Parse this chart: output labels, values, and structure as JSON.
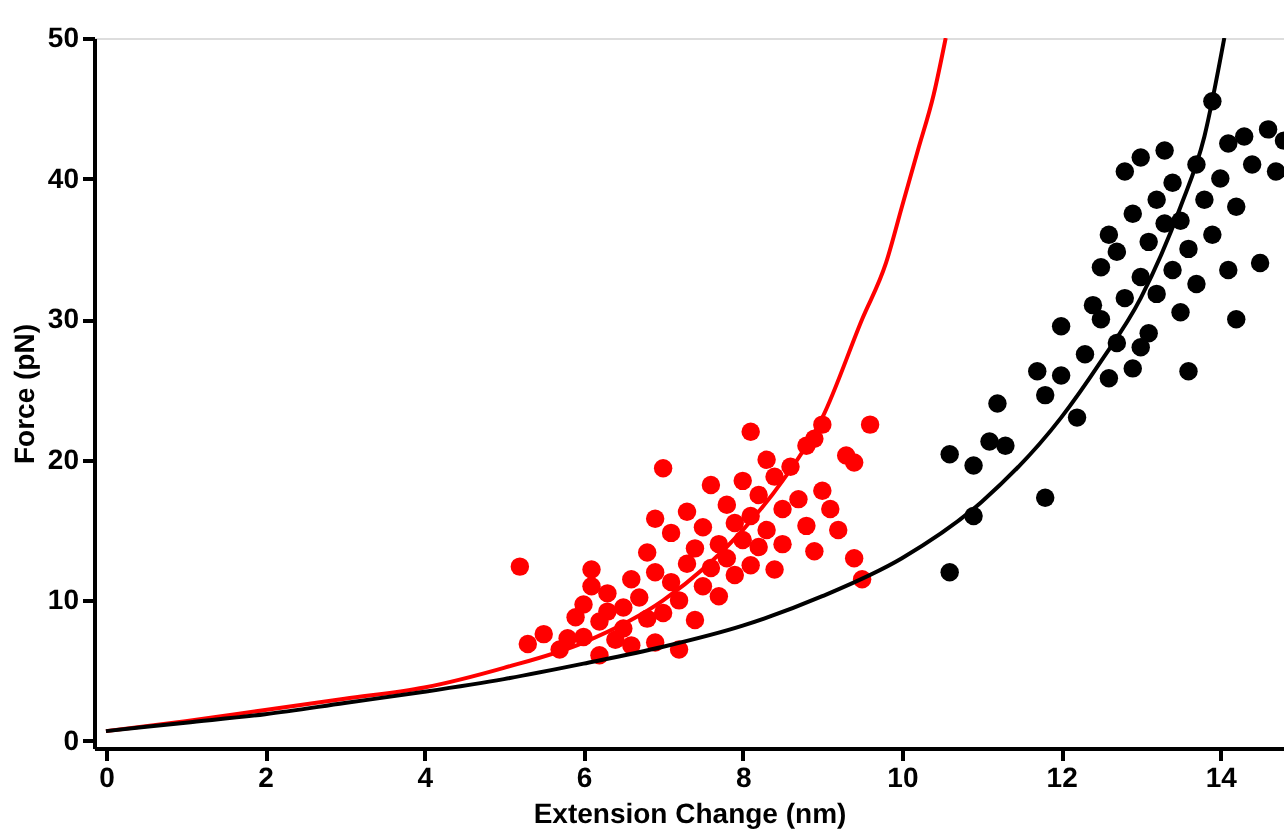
{
  "chart_data": {
    "type": "scatter",
    "xlabel": "Extension Change (nm)",
    "ylabel": "Force (pN)",
    "xlim": [
      -0.15,
      14.8
    ],
    "ylim": [
      -0.5,
      50
    ],
    "xticks": [
      0,
      2,
      4,
      6,
      8,
      10,
      12,
      14
    ],
    "yticks": [
      0,
      10,
      20,
      30,
      40,
      50
    ],
    "marker": "circle",
    "series": [
      {
        "color": "#ff0000",
        "x": [
          5.2,
          5.3,
          5.5,
          5.7,
          5.8,
          5.9,
          6.0,
          6.0,
          6.1,
          6.1,
          6.2,
          6.2,
          6.3,
          6.3,
          6.4,
          6.5,
          6.5,
          6.6,
          6.6,
          6.7,
          6.8,
          6.8,
          6.9,
          6.9,
          7.0,
          7.0,
          7.1,
          7.1,
          7.2,
          7.3,
          7.3,
          7.4,
          7.4,
          7.5,
          7.5,
          7.6,
          7.6,
          7.7,
          7.7,
          7.8,
          7.8,
          7.9,
          7.9,
          8.0,
          8.0,
          8.1,
          8.1,
          8.1,
          8.2,
          8.2,
          8.3,
          8.3,
          8.4,
          8.4,
          8.5,
          8.5,
          8.6,
          8.7,
          8.8,
          8.8,
          8.9,
          9.0,
          9.1,
          9.2,
          9.3,
          9.4,
          9.4,
          9.5,
          9.6,
          9.0,
          8.9,
          7.2,
          6.9
        ],
        "values": [
          12.4,
          6.9,
          7.6,
          6.5,
          7.3,
          8.8,
          9.7,
          7.4,
          11,
          12.2,
          6.1,
          8.5,
          9.2,
          10.5,
          7.2,
          8,
          9.5,
          6.8,
          11.5,
          10.2,
          8.7,
          13.4,
          12,
          15.8,
          9.1,
          19.4,
          11.3,
          14.8,
          10,
          12.6,
          16.3,
          8.6,
          13.7,
          11,
          15.2,
          12.3,
          18.2,
          14,
          10.3,
          13,
          16.8,
          11.8,
          15.5,
          14.3,
          18.5,
          12.5,
          16,
          22,
          13.8,
          17.5,
          15,
          20,
          12.2,
          18.8,
          16.5,
          14,
          19.5,
          17.2,
          15.3,
          21,
          13.5,
          17.8,
          16.5,
          15,
          20.3,
          19.8,
          13,
          11.5,
          22.5,
          22.5,
          21.5,
          6.5,
          7
        ]
      },
      {
        "type": "line",
        "color": "#ff0000",
        "marker": "none",
        "x": [
          0,
          1,
          2,
          3,
          4,
          5,
          6,
          7,
          8,
          8.5,
          9,
          9.5,
          9.8,
          10,
          10.2,
          10.4,
          10.55
        ],
        "values": [
          0.7,
          1.4,
          2.2,
          3,
          3.8,
          5.2,
          7,
          10,
          15,
          18.5,
          23,
          30,
          34,
          38,
          42,
          46,
          50
        ]
      },
      {
        "color": "#000000",
        "x": [
          10.6,
          10.6,
          10.9,
          10.9,
          11.2,
          11.1,
          11.3,
          11.8,
          11.7,
          11.8,
          12.0,
          12.2,
          12.0,
          12.3,
          12.4,
          12.5,
          12.6,
          12.5,
          12.6,
          12.7,
          12.7,
          12.8,
          12.8,
          12.9,
          12.9,
          13.0,
          13.0,
          13.1,
          13.1,
          13.2,
          13.2,
          13.3,
          13.3,
          13.4,
          13.4,
          13.5,
          13.5,
          13.6,
          13.6,
          13.7,
          13.7,
          13.8,
          13.9,
          13.9,
          14.0,
          14.1,
          14.1,
          14.2,
          14.3,
          14.4,
          14.5,
          14.6,
          14.7,
          14.8,
          14.2,
          13.0
        ],
        "values": [
          12,
          20.4,
          16,
          19.6,
          24,
          21.3,
          21,
          17.3,
          26.3,
          24.6,
          26,
          23,
          29.5,
          27.5,
          31,
          30,
          25.8,
          33.7,
          36,
          28.3,
          34.8,
          40.5,
          31.5,
          37.5,
          26.5,
          33,
          41.5,
          29,
          35.5,
          38.5,
          31.8,
          36.8,
          42,
          33.5,
          39.7,
          30.5,
          37,
          35,
          26.3,
          41,
          32.5,
          38.5,
          45.5,
          36,
          40,
          42.5,
          33.5,
          38,
          43,
          41,
          34,
          43.5,
          40.5,
          42.7,
          30,
          28
        ]
      },
      {
        "type": "line",
        "color": "#000000",
        "marker": "none",
        "x": [
          0,
          1,
          2,
          3,
          4,
          5,
          6,
          7,
          8,
          9,
          10,
          11,
          12,
          12.5,
          13,
          13.5,
          13.8,
          14.05
        ],
        "values": [
          0.7,
          1.3,
          1.9,
          2.7,
          3.5,
          4.4,
          5.5,
          6.7,
          8.2,
          10.3,
          13,
          17,
          23,
          27,
          31.5,
          38,
          43,
          50
        ]
      }
    ]
  }
}
